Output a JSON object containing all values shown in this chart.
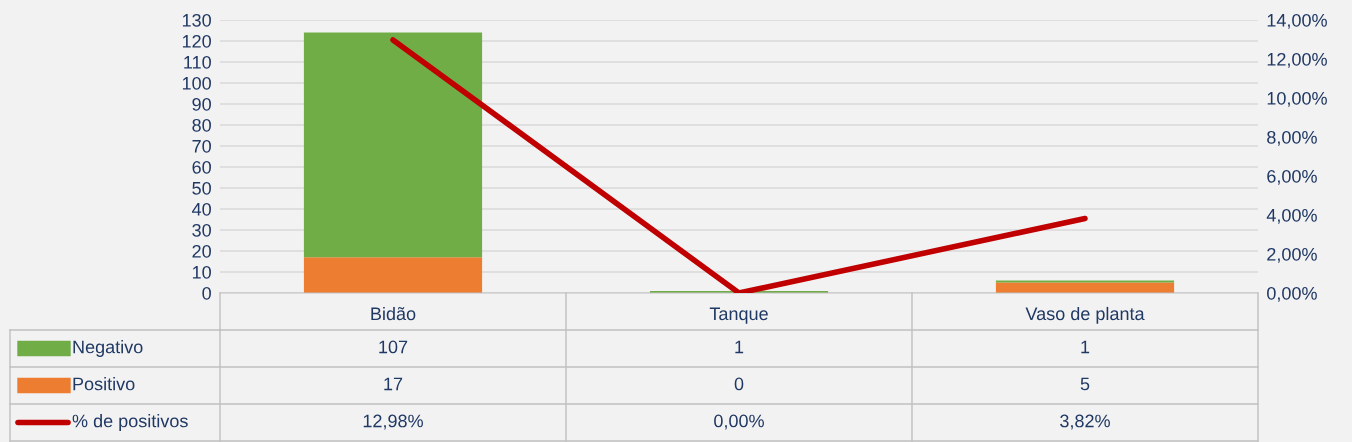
{
  "chart_data": {
    "type": "bar",
    "stacked": true,
    "categories": [
      "Bidão",
      "Tanque",
      "Vaso de planta"
    ],
    "series": [
      {
        "name": "Positivo",
        "type": "bar",
        "color": "#ed7d31",
        "values": [
          17,
          0,
          5
        ],
        "value_labels": [
          "17",
          "0",
          "5"
        ]
      },
      {
        "name": "Negativo",
        "type": "bar",
        "color": "#70ad47",
        "values": [
          107,
          1,
          1
        ],
        "value_labels": [
          "107",
          "1",
          "1"
        ]
      },
      {
        "name": "% de positivos",
        "type": "line",
        "axis": "y2",
        "color": "#c00000",
        "values": [
          12.98,
          0.0,
          3.82
        ],
        "value_labels": [
          "12,98%",
          "0,00%",
          "3,82%"
        ]
      }
    ],
    "ylim": [
      0,
      130
    ],
    "yticks": [
      0,
      10,
      20,
      30,
      40,
      50,
      60,
      70,
      80,
      90,
      100,
      110,
      120,
      130
    ],
    "y2lim": [
      0,
      14
    ],
    "y2ticks": [
      {
        "value": 0,
        "label": "0,00%"
      },
      {
        "value": 2,
        "label": "2,00%"
      },
      {
        "value": 4,
        "label": "4,00%"
      },
      {
        "value": 6,
        "label": "6,00%"
      },
      {
        "value": 8,
        "label": "8,00%"
      },
      {
        "value": 10,
        "label": "10,00%"
      },
      {
        "value": 12,
        "label": "12,00%"
      },
      {
        "value": 14,
        "label": "14,00%"
      }
    ],
    "grid": "y",
    "legend": "bottom",
    "marker": "none",
    "line_style": "solid"
  }
}
